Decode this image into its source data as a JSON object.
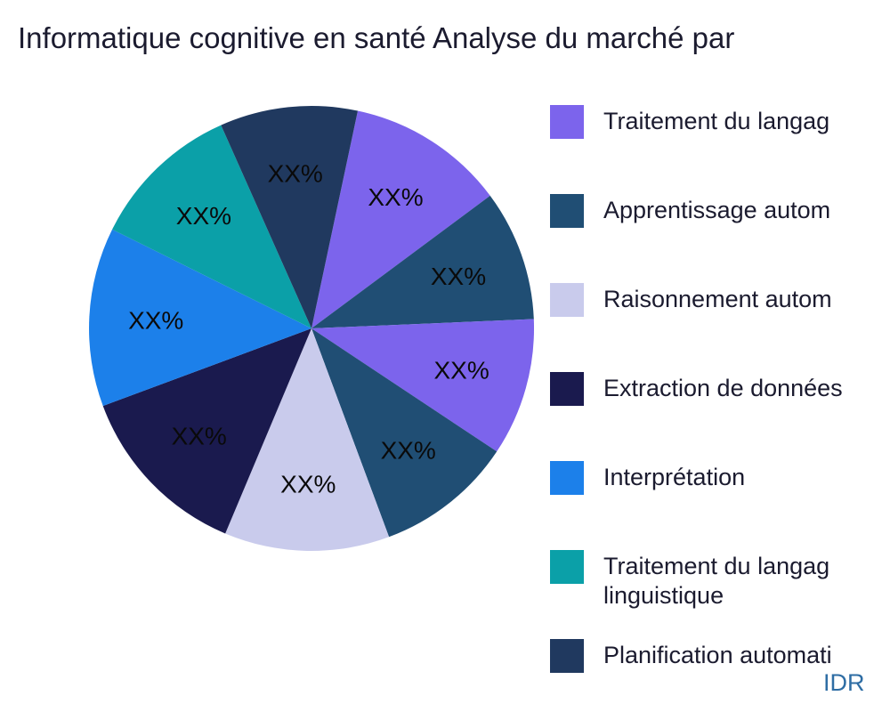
{
  "page": {
    "background": "#ffffff",
    "watermark": "IDR",
    "watermark_color": "#2e6da4"
  },
  "chart_data": {
    "type": "pie",
    "title": "Informatique cognitive en santé Analyse du marché par",
    "direction": "clockwise",
    "start_angle_deg_from_top": 12,
    "legend_position": "right",
    "values_shown_on_slices": "XX%",
    "slices": [
      {
        "label": "XX%",
        "pct": 11.5,
        "color": "#7c64ec"
      },
      {
        "label": "XX%",
        "pct": 9.5,
        "color": "#204e74"
      },
      {
        "label": "XX%",
        "pct": 10,
        "color": "#7c64ec"
      },
      {
        "label": "XX%",
        "pct": 10,
        "color": "#204e74"
      },
      {
        "label": "XX%",
        "pct": 12,
        "color": "#c9cbec"
      },
      {
        "label": "XX%",
        "pct": 13,
        "color": "#1a1a4e"
      },
      {
        "label": "XX%",
        "pct": 13,
        "color": "#1c80ea"
      },
      {
        "label": "XX%",
        "pct": 11,
        "color": "#0ba0a8"
      },
      {
        "label": "XX%",
        "pct": 10,
        "color": "#20395f"
      }
    ],
    "slice_label_color": "#0a0a0a",
    "legend": {
      "items": [
        {
          "label": "Traitement du langag",
          "label2": "",
          "color": "#7c64ec"
        },
        {
          "label": "Apprentissage autom",
          "label2": "",
          "color": "#204e74"
        },
        {
          "label": "Raisonnement autom",
          "label2": "",
          "color": "#c9cbec"
        },
        {
          "label": "Extraction de données",
          "label2": "",
          "color": "#1a1a4e"
        },
        {
          "label": "Interprétation",
          "label2": "",
          "color": "#1c80ea"
        },
        {
          "label": "Traitement du langag",
          "label2": "linguistique",
          "color": "#0ba0a8"
        },
        {
          "label": "Planification automati",
          "label2": "",
          "color": "#20395f"
        }
      ]
    }
  }
}
